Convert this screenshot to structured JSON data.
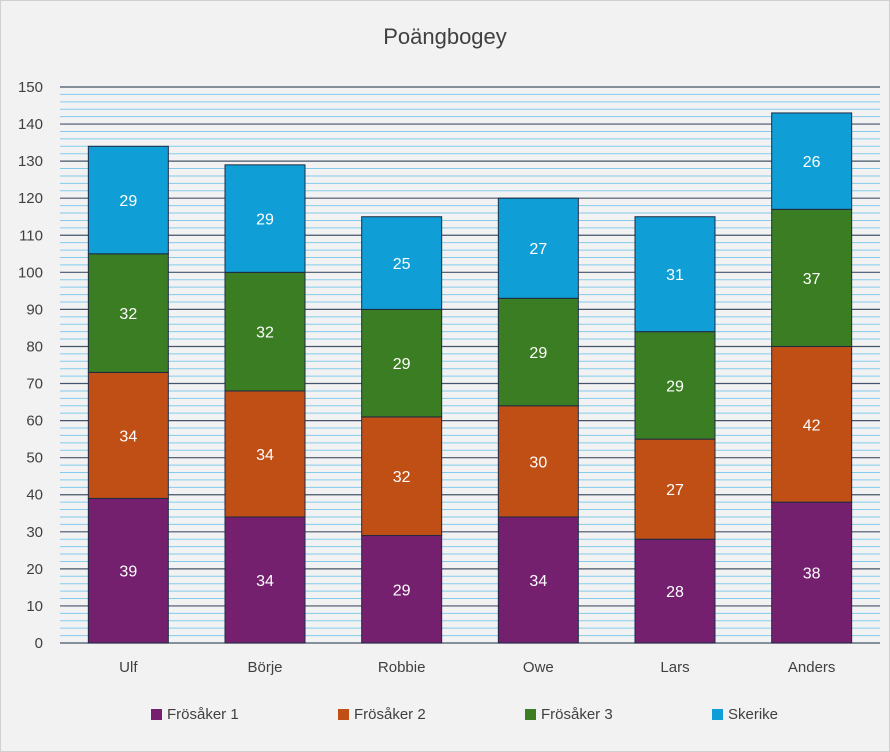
{
  "chart_data": {
    "type": "bar",
    "stacked": true,
    "title": "Poängbogey",
    "xlabel": "",
    "ylabel": "",
    "ylim": [
      0,
      150
    ],
    "yticks": [
      0,
      10,
      20,
      30,
      40,
      50,
      60,
      70,
      80,
      90,
      100,
      110,
      120,
      130,
      140,
      150
    ],
    "grid": "major every 10, minor every 2",
    "legend_position": "bottom",
    "categories": [
      "Ulf",
      "Börje",
      "Robbie",
      "Owe",
      "Lars",
      "Anders"
    ],
    "series": [
      {
        "name": "Frösåker 1",
        "color": "#75206e",
        "values": [
          39,
          34,
          29,
          34,
          28,
          38
        ]
      },
      {
        "name": "Frösåker 2",
        "color": "#c04f15",
        "values": [
          34,
          34,
          32,
          30,
          27,
          42
        ]
      },
      {
        "name": "Frösåker 3",
        "color": "#3b7d23",
        "values": [
          32,
          32,
          29,
          29,
          29,
          37
        ]
      },
      {
        "name": "Skerike",
        "color": "#0f9ed5",
        "values": [
          29,
          29,
          25,
          27,
          31,
          26
        ]
      }
    ]
  }
}
